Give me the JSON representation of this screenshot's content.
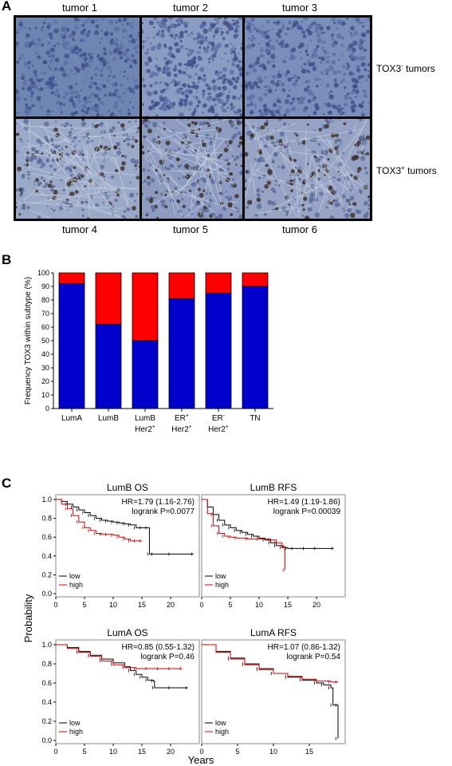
{
  "panelA": {
    "letter": "A",
    "top_labels": [
      "tumor 1",
      "tumor 2",
      "tumor 3"
    ],
    "bottom_labels": [
      "tumor 4",
      "tumor 5",
      "tumor 6"
    ],
    "row_labels": [
      {
        "base": "TOX3",
        "sup": "-",
        "rest": " tumors"
      },
      {
        "base": "TOX3",
        "sup": "+",
        "rest": " tumors"
      }
    ],
    "tiles": [
      {
        "name": "tumor-1-image",
        "stain": "negative",
        "bg": "#6f86b3"
      },
      {
        "name": "tumor-2-image",
        "stain": "negative",
        "bg": "#8a9cc2"
      },
      {
        "name": "tumor-3-image",
        "stain": "negative",
        "bg": "#7a8fbb"
      },
      {
        "name": "tumor-4-image",
        "stain": "positive",
        "bg": "#9aa9c8"
      },
      {
        "name": "tumor-5-image",
        "stain": "positive",
        "bg": "#8d9cc0"
      },
      {
        "name": "tumor-6-image",
        "stain": "positive",
        "bg": "#96a3c4"
      }
    ]
  },
  "panelB": {
    "letter": "B",
    "chart_data": {
      "type": "bar",
      "stacked": true,
      "ylabel": "Frequency TOX3 within subtype (%)",
      "ylim": [
        0,
        100
      ],
      "yticks": [
        0,
        10,
        20,
        30,
        40,
        50,
        60,
        70,
        80,
        90,
        100
      ],
      "categories": [
        {
          "line1": "LumA",
          "line1_sup": "",
          "line2": "",
          "line2_sup": ""
        },
        {
          "line1": "LumB",
          "line1_sup": "",
          "line2": "",
          "line2_sup": ""
        },
        {
          "line1": "LumB",
          "line1_sup": "",
          "line2": "Her2",
          "line2_sup": "+"
        },
        {
          "line1": "ER",
          "line1_sup": "+",
          "line2": "Her2",
          "line2_sup": "+"
        },
        {
          "line1": "ER",
          "line1_sup": "-",
          "line2": "Her2",
          "line2_sup": "+"
        },
        {
          "line1": "TN",
          "line1_sup": "",
          "line2": "",
          "line2_sup": ""
        }
      ],
      "series": [
        {
          "values": [
            92,
            62,
            50,
            81,
            85,
            90
          ],
          "color": "#0000cc"
        },
        {
          "values": [
            8,
            38,
            50,
            19,
            15,
            10
          ],
          "color": "#ff0000"
        }
      ]
    }
  },
  "panelC": {
    "letter": "C",
    "ylabel": "Probability",
    "xlabel": "Years",
    "chart_data": [
      {
        "type": "line",
        "title": "LumB OS",
        "hr_text": "HR=1.79 (1.16-2.76)",
        "p_text": "logrank P=0.0077",
        "xlim": [
          0,
          25
        ],
        "xticks": [
          0,
          5,
          10,
          15,
          20
        ],
        "ylim": [
          0,
          1
        ],
        "yticks": [
          0.0,
          0.2,
          0.4,
          0.6,
          0.8,
          1.0
        ],
        "legend": [
          "low",
          "high"
        ],
        "series": [
          {
            "name": "low",
            "color": "#000000",
            "x": [
              0,
              1,
              2,
              3,
              4,
              5,
              6,
              7,
              8,
              9,
              10,
              11,
              12,
              13,
              14,
              15,
              16,
              16.3,
              17,
              20,
              24
            ],
            "y": [
              1.0,
              0.98,
              0.95,
              0.92,
              0.89,
              0.86,
              0.83,
              0.8,
              0.78,
              0.77,
              0.76,
              0.75,
              0.74,
              0.73,
              0.7,
              0.7,
              0.7,
              0.42,
              0.42,
              0.42,
              0.42
            ]
          },
          {
            "name": "high",
            "color": "#cc0000",
            "x": [
              0,
              1,
              2,
              3,
              4,
              5,
              6,
              7,
              8,
              9,
              10,
              11,
              12,
              13,
              14,
              15
            ],
            "y": [
              1.0,
              0.95,
              0.9,
              0.83,
              0.76,
              0.7,
              0.67,
              0.64,
              0.63,
              0.63,
              0.62,
              0.6,
              0.58,
              0.56,
              0.56,
              0.56
            ]
          }
        ]
      },
      {
        "type": "line",
        "title": "LumB RFS",
        "hr_text": "HR=1.49 (1.19-1.86)",
        "p_text": "logrank P=0.00039",
        "xlim": [
          0,
          25
        ],
        "xticks": [
          0,
          5,
          10,
          15,
          20
        ],
        "ylim": [
          0,
          1
        ],
        "yticks": [
          0.0,
          0.2,
          0.4,
          0.6,
          0.8,
          1.0
        ],
        "legend": [
          "low",
          "high"
        ],
        "series": [
          {
            "name": "low",
            "color": "#000000",
            "x": [
              0,
              1,
              2,
              3,
              4,
              5,
              6,
              7,
              8,
              9,
              10,
              11,
              12,
              13,
              14,
              15,
              16,
              18,
              20,
              23
            ],
            "y": [
              1.0,
              0.92,
              0.84,
              0.78,
              0.73,
              0.7,
              0.67,
              0.65,
              0.63,
              0.61,
              0.59,
              0.57,
              0.54,
              0.51,
              0.49,
              0.48,
              0.48,
              0.48,
              0.48,
              0.48
            ]
          },
          {
            "name": "high",
            "color": "#cc0000",
            "x": [
              0,
              1,
              2,
              3,
              4,
              5,
              6,
              8,
              10,
              12,
              13,
              14,
              14.5,
              14.5
            ],
            "y": [
              1.0,
              0.85,
              0.72,
              0.64,
              0.61,
              0.6,
              0.59,
              0.58,
              0.58,
              0.57,
              0.54,
              0.5,
              0.5,
              0.25
            ]
          }
        ]
      },
      {
        "type": "line",
        "title": "LumA OS",
        "hr_text": "HR=0.85 (0.55-1.32)",
        "p_text": "logrank P=0.46",
        "xlim": [
          0,
          25
        ],
        "xticks": [
          0,
          5,
          10,
          15,
          20
        ],
        "ylim": [
          0,
          1
        ],
        "yticks": [
          0.0,
          0.2,
          0.4,
          0.6,
          0.8,
          1.0
        ],
        "legend": [
          "low",
          "high"
        ],
        "series": [
          {
            "name": "low",
            "color": "#000000",
            "x": [
              0,
              2,
              4,
              6,
              8,
              10,
              12,
              13,
              14,
              15,
              16,
              17,
              17.2,
              20,
              23
            ],
            "y": [
              1.0,
              0.97,
              0.93,
              0.89,
              0.85,
              0.81,
              0.77,
              0.73,
              0.69,
              0.66,
              0.63,
              0.62,
              0.55,
              0.55,
              0.55
            ]
          },
          {
            "name": "high",
            "color": "#cc0000",
            "x": [
              0,
              2,
              4,
              6,
              8,
              10,
              12,
              14,
              16,
              18,
              20,
              22
            ],
            "y": [
              1.0,
              0.96,
              0.92,
              0.88,
              0.83,
              0.79,
              0.76,
              0.75,
              0.75,
              0.75,
              0.75,
              0.75
            ]
          }
        ]
      },
      {
        "type": "line",
        "title": "LumA RFS",
        "hr_text": "HR=1.07 (0.86-1.32)",
        "p_text": "logrank P=0.54",
        "xlim": [
          0,
          20
        ],
        "xticks": [
          0,
          5,
          10,
          15
        ],
        "ylim": [
          0,
          1
        ],
        "yticks": [
          0.0,
          0.2,
          0.4,
          0.6,
          0.8,
          1.0
        ],
        "legend": [
          "low",
          "high"
        ],
        "series": [
          {
            "name": "low",
            "color": "#000000",
            "x": [
              0,
              2,
              4,
              6,
              8,
              10,
              12,
              14,
              16,
              17,
              18,
              18.3,
              19,
              19
            ],
            "y": [
              1.0,
              0.93,
              0.86,
              0.8,
              0.75,
              0.7,
              0.66,
              0.63,
              0.6,
              0.58,
              0.55,
              0.37,
              0.37,
              0.02
            ]
          },
          {
            "name": "high",
            "color": "#cc0000",
            "x": [
              0,
              2,
              4,
              6,
              8,
              10,
              12,
              14,
              16,
              18,
              19
            ],
            "y": [
              1.0,
              0.92,
              0.85,
              0.79,
              0.74,
              0.7,
              0.67,
              0.64,
              0.62,
              0.61,
              0.61
            ]
          }
        ]
      }
    ]
  }
}
